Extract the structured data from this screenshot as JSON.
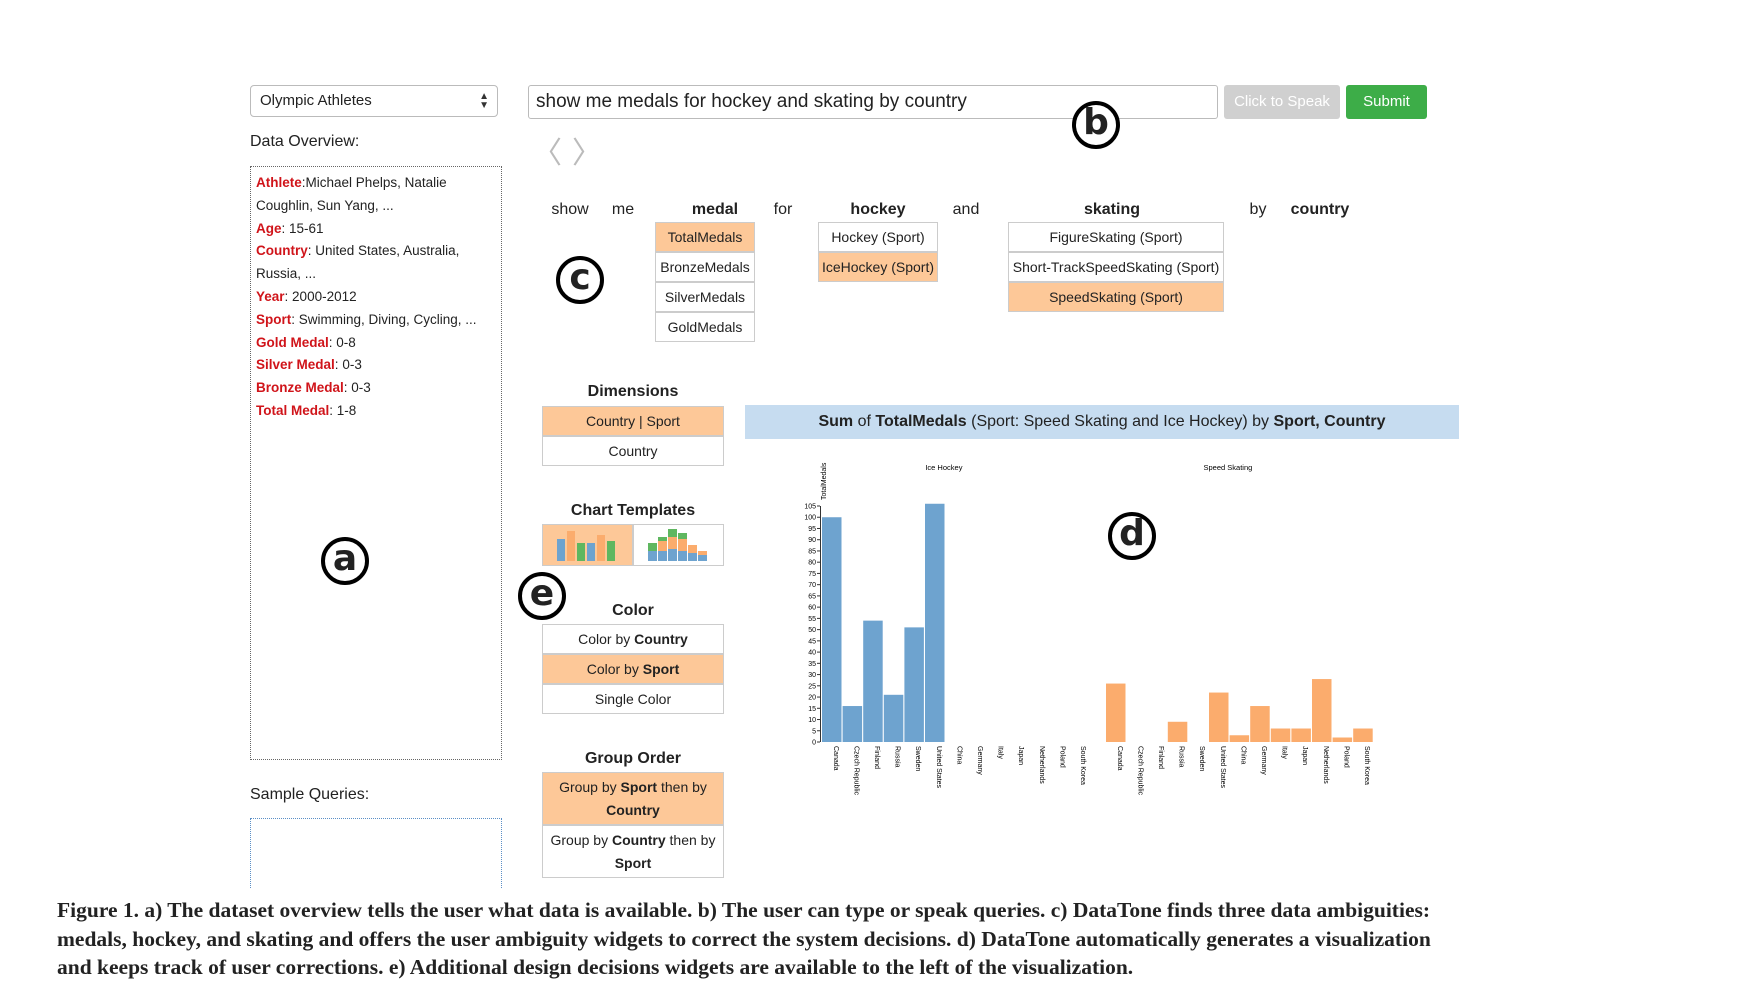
{
  "dataset_select": {
    "value": "Olympic Athletes"
  },
  "data_overview": {
    "label": "Data Overview:",
    "rows": [
      {
        "key": "Athlete",
        "sep": ":",
        "value": "Michael Phelps, Natalie"
      },
      {
        "key": "",
        "sep": "",
        "value": "Coughlin, Sun Yang, ..."
      },
      {
        "key": "Age",
        "sep": ": ",
        "value": "15-61"
      },
      {
        "key": "Country",
        "sep": ": ",
        "value": "United States, Australia,"
      },
      {
        "key": "",
        "sep": "",
        "value": "Russia, ..."
      },
      {
        "key": "Year",
        "sep": ": ",
        "value": "2000-2012"
      },
      {
        "key": "Sport",
        "sep": ": ",
        "value": "Swimming, Diving, Cycling, ..."
      },
      {
        "key": "Gold Medal",
        "sep": ": ",
        "value": "0-8"
      },
      {
        "key": "Silver Medal",
        "sep": ": ",
        "value": "0-3"
      },
      {
        "key": "Bronze Medal",
        "sep": ": ",
        "value": "0-3"
      },
      {
        "key": "Total Medal",
        "sep": ": ",
        "value": "1-8"
      }
    ]
  },
  "sample_queries": {
    "label": "Sample Queries:"
  },
  "query": {
    "value": "show me medals for hockey and skating by country",
    "speak_label": "Click to Speak",
    "submit_label": "Submit"
  },
  "nav": {
    "back": "〈",
    "forward": "〉"
  },
  "markers": {
    "a": "a",
    "b": "b",
    "c": "c",
    "d": "d",
    "e": "e"
  },
  "ambiguity": {
    "words": [
      "show",
      "me",
      "medal",
      "for",
      "hockey",
      "and",
      "skating",
      "by",
      "country"
    ],
    "medal_options": [
      "TotalMedals",
      "BronzeMedals",
      "SilverMedals",
      "GoldMedals"
    ],
    "hockey_options": [
      "Hockey (Sport)",
      "IceHockey (Sport)"
    ],
    "skating_options": [
      "FigureSkating (Sport)",
      "Short-TrackSpeedSkating (Sport)",
      "SpeedSkating (Sport)"
    ]
  },
  "design": {
    "dimensions_title": "Dimensions",
    "dimensions": [
      "Country | Sport",
      "Country"
    ],
    "templates_title": "Chart Templates",
    "color_title": "Color",
    "color_opts": [
      {
        "pre": "Color by ",
        "b": "Country"
      },
      {
        "pre": "Color by ",
        "b": "Sport"
      },
      {
        "pre": "Single Color",
        "b": ""
      }
    ],
    "group_title": "Group Order",
    "group_opts": [
      {
        "l1a": "Group by ",
        "l1b": "Sport",
        "l1c": " then by",
        "l2": "Country"
      },
      {
        "l1a": "Group by ",
        "l1b": "Country",
        "l1c": " then by",
        "l2": "Sport"
      }
    ]
  },
  "chart_header": {
    "p1": "Sum",
    "p2": " of ",
    "p3": "TotalMedals",
    "p4": " (Sport: Speed Skating and Ice Hockey) by ",
    "p5": "Sport, Country"
  },
  "colors": {
    "blue": "#6ea3cf",
    "orange": "#fbac6d",
    "selected": "#fdc898",
    "submit": "#3dad48",
    "key_red": "#d0141a"
  },
  "chart_data": {
    "type": "bar",
    "ylabel": "TotalMedals",
    "ylim": [
      0,
      105
    ],
    "yticks": [
      0,
      5,
      10,
      15,
      20,
      25,
      30,
      35,
      40,
      45,
      50,
      55,
      60,
      65,
      70,
      75,
      80,
      85,
      90,
      95,
      100,
      105
    ],
    "facets": [
      {
        "name": "Ice Hockey",
        "color": "#6ea3cf",
        "categories": [
          "Canada",
          "Czech Republic",
          "Finland",
          "Russia",
          "Sweden",
          "United States",
          "China",
          "Germany",
          "Italy",
          "Japan",
          "Netherlands",
          "Poland",
          "South Korea"
        ],
        "values": [
          100,
          16,
          54,
          21,
          51,
          106,
          0,
          0,
          0,
          0,
          0,
          0,
          0
        ]
      },
      {
        "name": "Speed Skating",
        "color": "#fbac6d",
        "categories": [
          "Canada",
          "Czech Republic",
          "Finland",
          "Russia",
          "Sweden",
          "United States",
          "China",
          "Germany",
          "Italy",
          "Japan",
          "Netherlands",
          "Poland",
          "South Korea"
        ],
        "values": [
          26,
          0,
          0,
          9,
          0,
          22,
          3,
          16,
          6,
          6,
          28,
          2,
          6
        ]
      }
    ]
  },
  "caption": {
    "l1": "Figure 1. a) The dataset overview tells the user what data is available. b) The user can type or speak queries. c) DataTone finds three data ambiguities:",
    "l2": "medals, hockey, and skating and offers the user ambiguity widgets to correct the system decisions. d) DataTone automatically generates a visualization",
    "l3": "and keeps track of user corrections. e) Additional design decisions widgets are available to the left of the visualization."
  }
}
